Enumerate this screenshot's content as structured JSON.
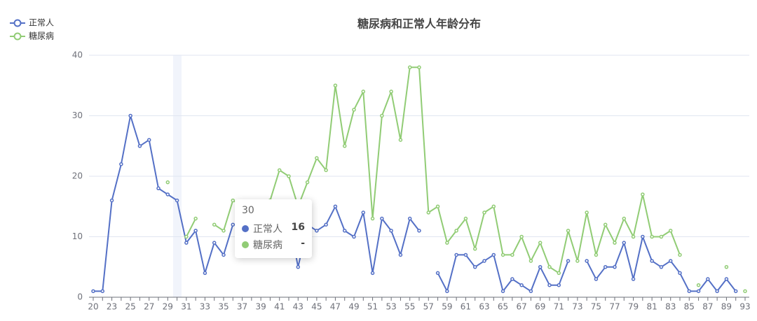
{
  "chart_data": {
    "type": "line",
    "title": "糖尿病和正常人年龄分布",
    "categories": [
      20,
      22,
      23,
      24,
      25,
      26,
      27,
      28,
      29,
      30,
      31,
      32,
      33,
      34,
      35,
      36,
      37,
      38,
      39,
      40,
      41,
      42,
      43,
      44,
      45,
      46,
      47,
      48,
      49,
      50,
      51,
      52,
      53,
      54,
      55,
      56,
      57,
      58,
      59,
      60,
      61,
      62,
      63,
      64,
      65,
      66,
      67,
      68,
      69,
      70,
      71,
      72,
      73,
      74,
      75,
      76,
      77,
      78,
      79,
      80,
      81,
      82,
      83,
      84,
      85,
      86,
      87,
      88,
      89,
      null,
      93
    ],
    "series": [
      {
        "name": "正常人",
        "color": "#5470c6",
        "values": [
          1,
          1,
          16,
          22,
          30,
          25,
          26,
          18,
          17,
          16,
          9,
          11,
          4,
          9,
          7,
          12,
          12,
          7,
          7,
          7,
          12,
          13,
          5,
          12,
          11,
          12,
          15,
          11,
          10,
          14,
          4,
          13,
          11,
          7,
          13,
          11,
          null,
          4,
          1,
          7,
          7,
          5,
          6,
          7,
          1,
          3,
          2,
          1,
          5,
          2,
          2,
          6,
          null,
          6,
          3,
          5,
          5,
          9,
          3,
          10,
          6,
          5,
          6,
          4,
          1,
          1,
          3,
          1,
          3,
          1,
          null
        ]
      },
      {
        "name": "糖尿病",
        "color": "#91cc75",
        "values": [
          null,
          null,
          null,
          null,
          null,
          null,
          null,
          null,
          19,
          null,
          10,
          13,
          null,
          12,
          11,
          16,
          15,
          12,
          14,
          16,
          21,
          20,
          15,
          19,
          23,
          21,
          35,
          25,
          31,
          34,
          13,
          30,
          34,
          26,
          38,
          38,
          14,
          15,
          9,
          11,
          13,
          8,
          14,
          15,
          7,
          7,
          10,
          6,
          9,
          5,
          4,
          11,
          6,
          14,
          7,
          12,
          9,
          13,
          10,
          17,
          10,
          10,
          11,
          7,
          null,
          2,
          null,
          null,
          5,
          null,
          1
        ]
      }
    ],
    "ylim": [
      0,
      40
    ],
    "yticks": [
      0,
      10,
      20,
      30,
      40
    ],
    "grid": true,
    "legend": "top-left",
    "tooltip": {
      "title": "30",
      "rows": [
        {
          "name": "正常人",
          "value": 16
        },
        {
          "name": "糖尿病",
          "value": "-"
        }
      ]
    }
  }
}
